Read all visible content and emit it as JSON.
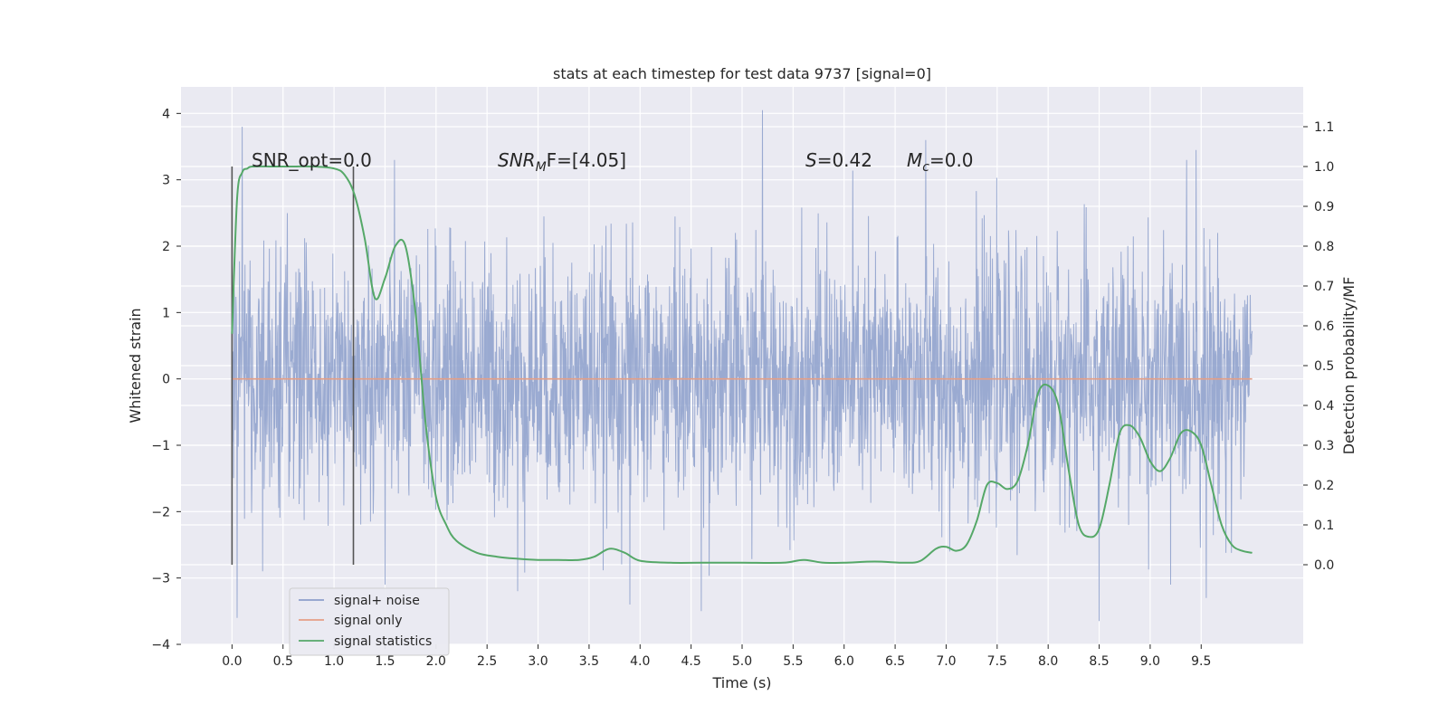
{
  "chart_data": {
    "type": "line",
    "title": "stats at each timestep for test data 9737 [signal=0]",
    "xlabel": "Time (s)",
    "ylabel_left": "Whitened strain",
    "ylabel_right": "Detection probability/MF",
    "xlim": [
      -0.5,
      10.5
    ],
    "ylim_left": [
      -4,
      4.4
    ],
    "ylim_right": [
      -0.2,
      1.2
    ],
    "x_ticks": [
      0.0,
      0.5,
      1.0,
      1.5,
      2.0,
      2.5,
      3.0,
      3.5,
      4.0,
      4.5,
      5.0,
      5.5,
      6.0,
      6.5,
      7.0,
      7.5,
      8.0,
      8.5,
      9.0,
      9.5
    ],
    "x_tick_labels": [
      "0.0",
      "0.5",
      "1.0",
      "1.5",
      "2.0",
      "2.5",
      "3.0",
      "3.5",
      "4.0",
      "4.5",
      "5.0",
      "5.5",
      "6.0",
      "6.5",
      "7.0",
      "7.5",
      "8.0",
      "8.5",
      "9.0",
      "9.5"
    ],
    "y_left_ticks": [
      -4,
      -3,
      -2,
      -1,
      0,
      1,
      2,
      3,
      4
    ],
    "y_left_tick_labels": [
      "−4",
      "−3",
      "−2",
      "−1",
      "0",
      "1",
      "2",
      "3",
      "4"
    ],
    "y_right_ticks": [
      0.0,
      0.1,
      0.2,
      0.3,
      0.4,
      0.5,
      0.6,
      0.7,
      0.8,
      0.9,
      1.0,
      1.1
    ],
    "y_right_tick_labels": [
      "0.0",
      "0.1",
      "0.2",
      "0.3",
      "0.4",
      "0.5",
      "0.6",
      "0.7",
      "0.8",
      "0.9",
      "1.0",
      "1.1"
    ],
    "grid": true,
    "legend_position": "lower-left",
    "annotations": {
      "snr_opt": "SNR_opt=0.0",
      "snr_mf_base": "SNR",
      "snr_mf_sub": "M",
      "snr_mf_rest": "F=[4.05]",
      "s_sym": "S",
      "s_val": "=0.42",
      "mc_sym": "M",
      "mc_sub": "c",
      "mc_val": "=0.0"
    },
    "markers": {
      "window_lines_x": [
        0.0,
        1.19
      ],
      "window_lines_ylim": [
        -2.8,
        3.2
      ]
    },
    "series": [
      {
        "name": "signal+ noise",
        "axis": "left",
        "color": "#8c9fcb",
        "x_range": [
          0.0,
          10.0
        ],
        "envelope_typical": 1.4,
        "peaks": [
          {
            "x": 0.05,
            "y": -3.6
          },
          {
            "x": 0.1,
            "y": 3.8
          },
          {
            "x": 0.3,
            "y": -2.9
          },
          {
            "x": 1.5,
            "y": -3.1
          },
          {
            "x": 2.8,
            "y": -3.2
          },
          {
            "x": 3.9,
            "y": -3.4
          },
          {
            "x": 4.6,
            "y": -3.5
          },
          {
            "x": 5.2,
            "y": 4.05
          },
          {
            "x": 6.8,
            "y": 3.6
          },
          {
            "x": 8.5,
            "y": -3.65
          },
          {
            "x": 9.2,
            "y": -3.1
          },
          {
            "x": 9.45,
            "y": 3.45
          },
          {
            "x": 9.55,
            "y": -3.3
          }
        ]
      },
      {
        "name": "signal only",
        "axis": "left",
        "color": "#e59f86",
        "x": [
          0.0,
          10.0
        ],
        "y": [
          0.0,
          0.0
        ]
      },
      {
        "name": "signal statistics",
        "axis": "right",
        "color": "#55a868",
        "x": [
          0.0,
          0.05,
          0.1,
          0.15,
          0.2,
          0.4,
          0.6,
          0.8,
          1.0,
          1.1,
          1.2,
          1.3,
          1.4,
          1.5,
          1.6,
          1.7,
          1.8,
          1.9,
          2.0,
          2.1,
          2.2,
          2.4,
          2.6,
          2.8,
          3.0,
          3.2,
          3.4,
          3.55,
          3.7,
          3.85,
          4.0,
          4.3,
          4.6,
          5.0,
          5.4,
          5.6,
          5.8,
          6.0,
          6.3,
          6.6,
          6.75,
          6.9,
          7.0,
          7.1,
          7.2,
          7.3,
          7.4,
          7.5,
          7.6,
          7.7,
          7.8,
          7.9,
          8.0,
          8.1,
          8.2,
          8.3,
          8.4,
          8.5,
          8.6,
          8.7,
          8.8,
          8.9,
          9.0,
          9.1,
          9.2,
          9.3,
          9.4,
          9.5,
          9.6,
          9.7,
          9.8,
          9.9,
          10.0
        ],
        "y": [
          0.58,
          0.92,
          0.985,
          0.995,
          1.0,
          1.0,
          1.0,
          1.0,
          0.995,
          0.98,
          0.93,
          0.82,
          0.67,
          0.72,
          0.8,
          0.8,
          0.63,
          0.35,
          0.17,
          0.1,
          0.06,
          0.03,
          0.02,
          0.015,
          0.012,
          0.012,
          0.012,
          0.02,
          0.04,
          0.03,
          0.01,
          0.005,
          0.005,
          0.005,
          0.005,
          0.012,
          0.005,
          0.005,
          0.008,
          0.005,
          0.01,
          0.04,
          0.045,
          0.035,
          0.05,
          0.11,
          0.2,
          0.205,
          0.19,
          0.21,
          0.3,
          0.43,
          0.45,
          0.4,
          0.24,
          0.1,
          0.07,
          0.09,
          0.2,
          0.33,
          0.35,
          0.32,
          0.26,
          0.235,
          0.27,
          0.33,
          0.335,
          0.3,
          0.2,
          0.1,
          0.05,
          0.035,
          0.03
        ]
      }
    ]
  }
}
